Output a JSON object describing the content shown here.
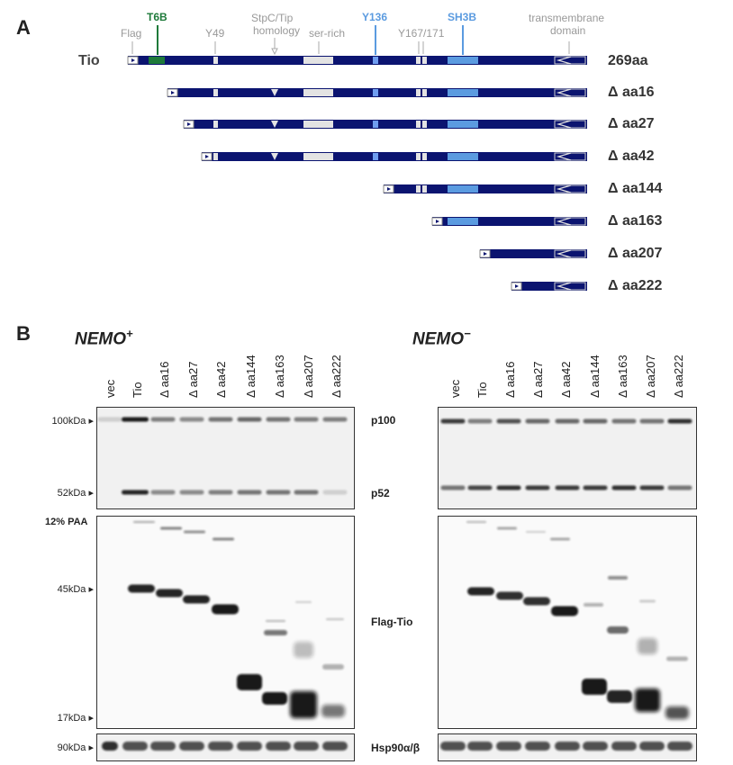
{
  "panel_a": {
    "letter": "A",
    "features": {
      "flag": "Flag",
      "t6b": "T6B",
      "y49": "Y49",
      "stpc_line1": "StpC/Tip",
      "stpc_line2": "homology",
      "ser_rich": "ser-rich",
      "y136": "Y136",
      "y167": "Y167/171",
      "sh3b": "SH3B",
      "tm_line1": "transmembrane",
      "tm_line2": "domain"
    },
    "full_label": "Tio",
    "rows": [
      {
        "label": "269aa"
      },
      {
        "label": "Δ aa16"
      },
      {
        "label": "Δ aa27"
      },
      {
        "label": "Δ aa42"
      },
      {
        "label": "Δ aa144"
      },
      {
        "label": "Δ aa163"
      },
      {
        "label": "Δ aa207"
      },
      {
        "label": "Δ aa222"
      }
    ],
    "colors": {
      "bar": "#0b1470",
      "t6b": "#1e7a3a",
      "sh3b": "#5b9be0",
      "y136": "#6f9df0",
      "box": "#e3e3e3"
    }
  },
  "panel_b": {
    "letter": "B",
    "nemo_plus": {
      "name": "NEMO",
      "sup": "+"
    },
    "nemo_minus": {
      "name": "NEMO",
      "sup": "−"
    },
    "lanes": [
      "vec",
      "Tio",
      "Δ aa16",
      "Δ aa27",
      "Δ aa42",
      "Δ aa144",
      "Δ aa163",
      "Δ aa207",
      "Δ aa222"
    ],
    "markers": {
      "m100": "100kDa",
      "m52": "52kDa",
      "paa": "12% PAA",
      "m45": "45kDa",
      "m17": "17kDa",
      "m90": "90kDa"
    },
    "blot_labels": {
      "p100": "p100",
      "p52": "p52",
      "flag_tio": "Flag-Tio",
      "hsp": "Hsp90α/β"
    }
  }
}
